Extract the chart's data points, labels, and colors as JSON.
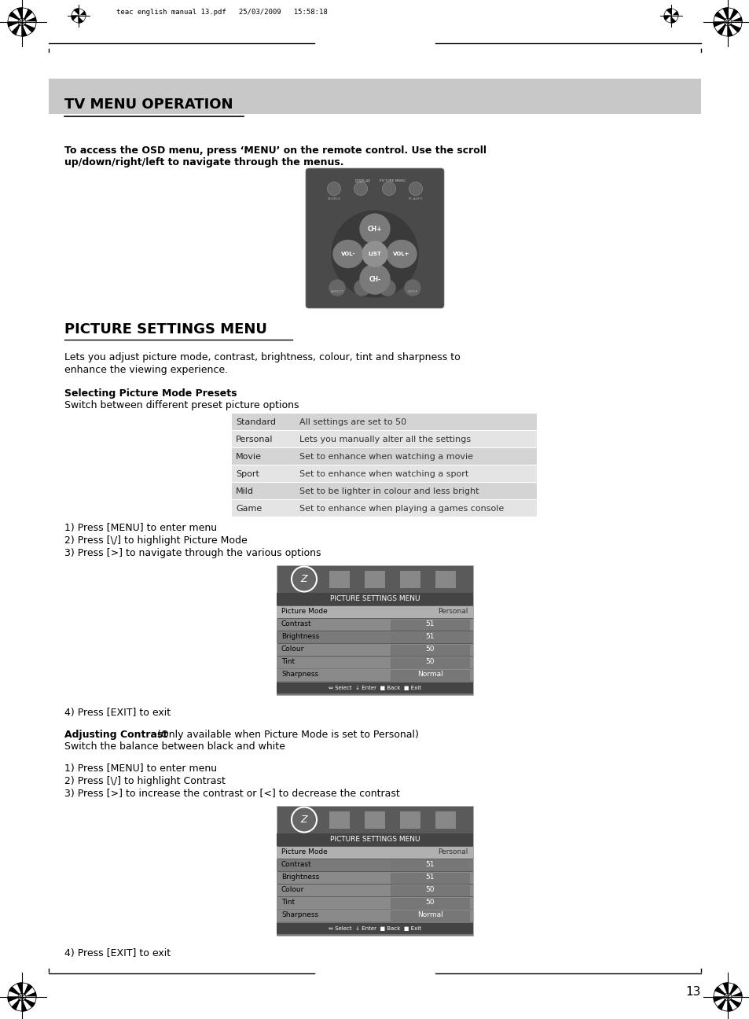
{
  "page_bg": "#ffffff",
  "header_bg": "#c8c8c8",
  "header_text": "TV MENU OPERATION",
  "print_info": "teac english manual 13.pdf   25/03/2009   15:58:18",
  "page_number": "13",
  "intro_bold": "To access the OSD menu, press ‘MENU’ on the remote control. Use the scroll\nup/down/right/left to navigate through the menus.",
  "section1_title": "PICTURE SETTINGS MENU",
  "section1_desc": "Lets you adjust picture mode, contrast, brightness, colour, tint and sharpness to\nenhance the viewing experience.",
  "subsection1_title": "Selecting Picture Mode Presets",
  "subsection1_sub": "Switch between different preset picture options",
  "table1_rows": [
    [
      "Standard",
      "All settings are set to 50"
    ],
    [
      "Personal",
      "Lets you manually alter all the settings"
    ],
    [
      "Movie",
      "Set to enhance when watching a movie"
    ],
    [
      "Sport",
      "Set to enhance when watching a sport"
    ],
    [
      "Mild",
      "Set to be lighter in colour and less bright"
    ],
    [
      "Game",
      "Set to enhance when playing a games console"
    ]
  ],
  "steps1": [
    "1) Press [MENU] to enter menu",
    "2) Press [\\/] to highlight Picture Mode",
    "3) Press [>] to navigate through the various options"
  ],
  "step4_1": "4) Press [EXIT] to exit",
  "subsection2_title": "Adjusting Contrast",
  "subsection2_title_rest": " (Only available when Picture Mode is set to Personal)",
  "subsection2_sub": "Switch the balance between black and white",
  "steps2": [
    "1) Press [MENU] to enter menu",
    "2) Press [\\/] to highlight Contrast",
    "3) Press [>] to increase the contrast or [<] to decrease the contrast"
  ],
  "step4_2": "4) Press [EXIT] to exit",
  "menu_title": "PICTURE SETTINGS MENU",
  "menu_rows": [
    [
      "Picture Mode",
      "Personal"
    ],
    [
      "Contrast",
      "51"
    ],
    [
      "Brightness",
      "51"
    ],
    [
      "Colour",
      "50"
    ],
    [
      "Tint",
      "50"
    ],
    [
      "Sharpness",
      "Normal"
    ]
  ]
}
